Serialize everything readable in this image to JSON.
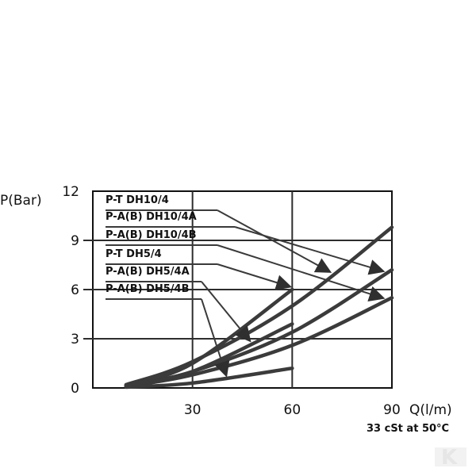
{
  "chart_data": {
    "type": "line",
    "xlabel": "Q(l/m)",
    "ylabel": "P(Bar)",
    "xlim": [
      0,
      90
    ],
    "ylim": [
      0,
      12
    ],
    "x_ticks": [
      30,
      60,
      90
    ],
    "y_ticks": [
      0,
      3,
      6,
      9,
      12
    ],
    "grid": true,
    "legend_placement": "top-left, with arrows pointing to each curve",
    "note": "33 cSt at 50°C",
    "series": [
      {
        "name": "P-T DH10/4",
        "x": [
          10,
          30,
          60,
          90
        ],
        "y": [
          0.2,
          1.6,
          5.0,
          9.8
        ]
      },
      {
        "name": "P-A(B) DH10/4A",
        "x": [
          10,
          30,
          60,
          90
        ],
        "y": [
          0.15,
          1.0,
          3.4,
          7.2
        ]
      },
      {
        "name": "P-A(B) DH10/4B",
        "x": [
          10,
          30,
          60,
          90
        ],
        "y": [
          0.1,
          0.8,
          2.6,
          5.5
        ]
      },
      {
        "name": "P-T DH5/4",
        "x": [
          10,
          30,
          60
        ],
        "y": [
          0.15,
          1.5,
          6.0
        ]
      },
      {
        "name": "P-A(B) DH5/4A",
        "x": [
          10,
          30,
          60
        ],
        "y": [
          0.1,
          1.0,
          3.9
        ]
      },
      {
        "name": "P-A(B) DH5/4B",
        "x": [
          10,
          30,
          60
        ],
        "y": [
          0.05,
          0.3,
          1.2
        ]
      }
    ]
  },
  "watermark": {
    "text": "K",
    "color": "#e6e6e6"
  }
}
